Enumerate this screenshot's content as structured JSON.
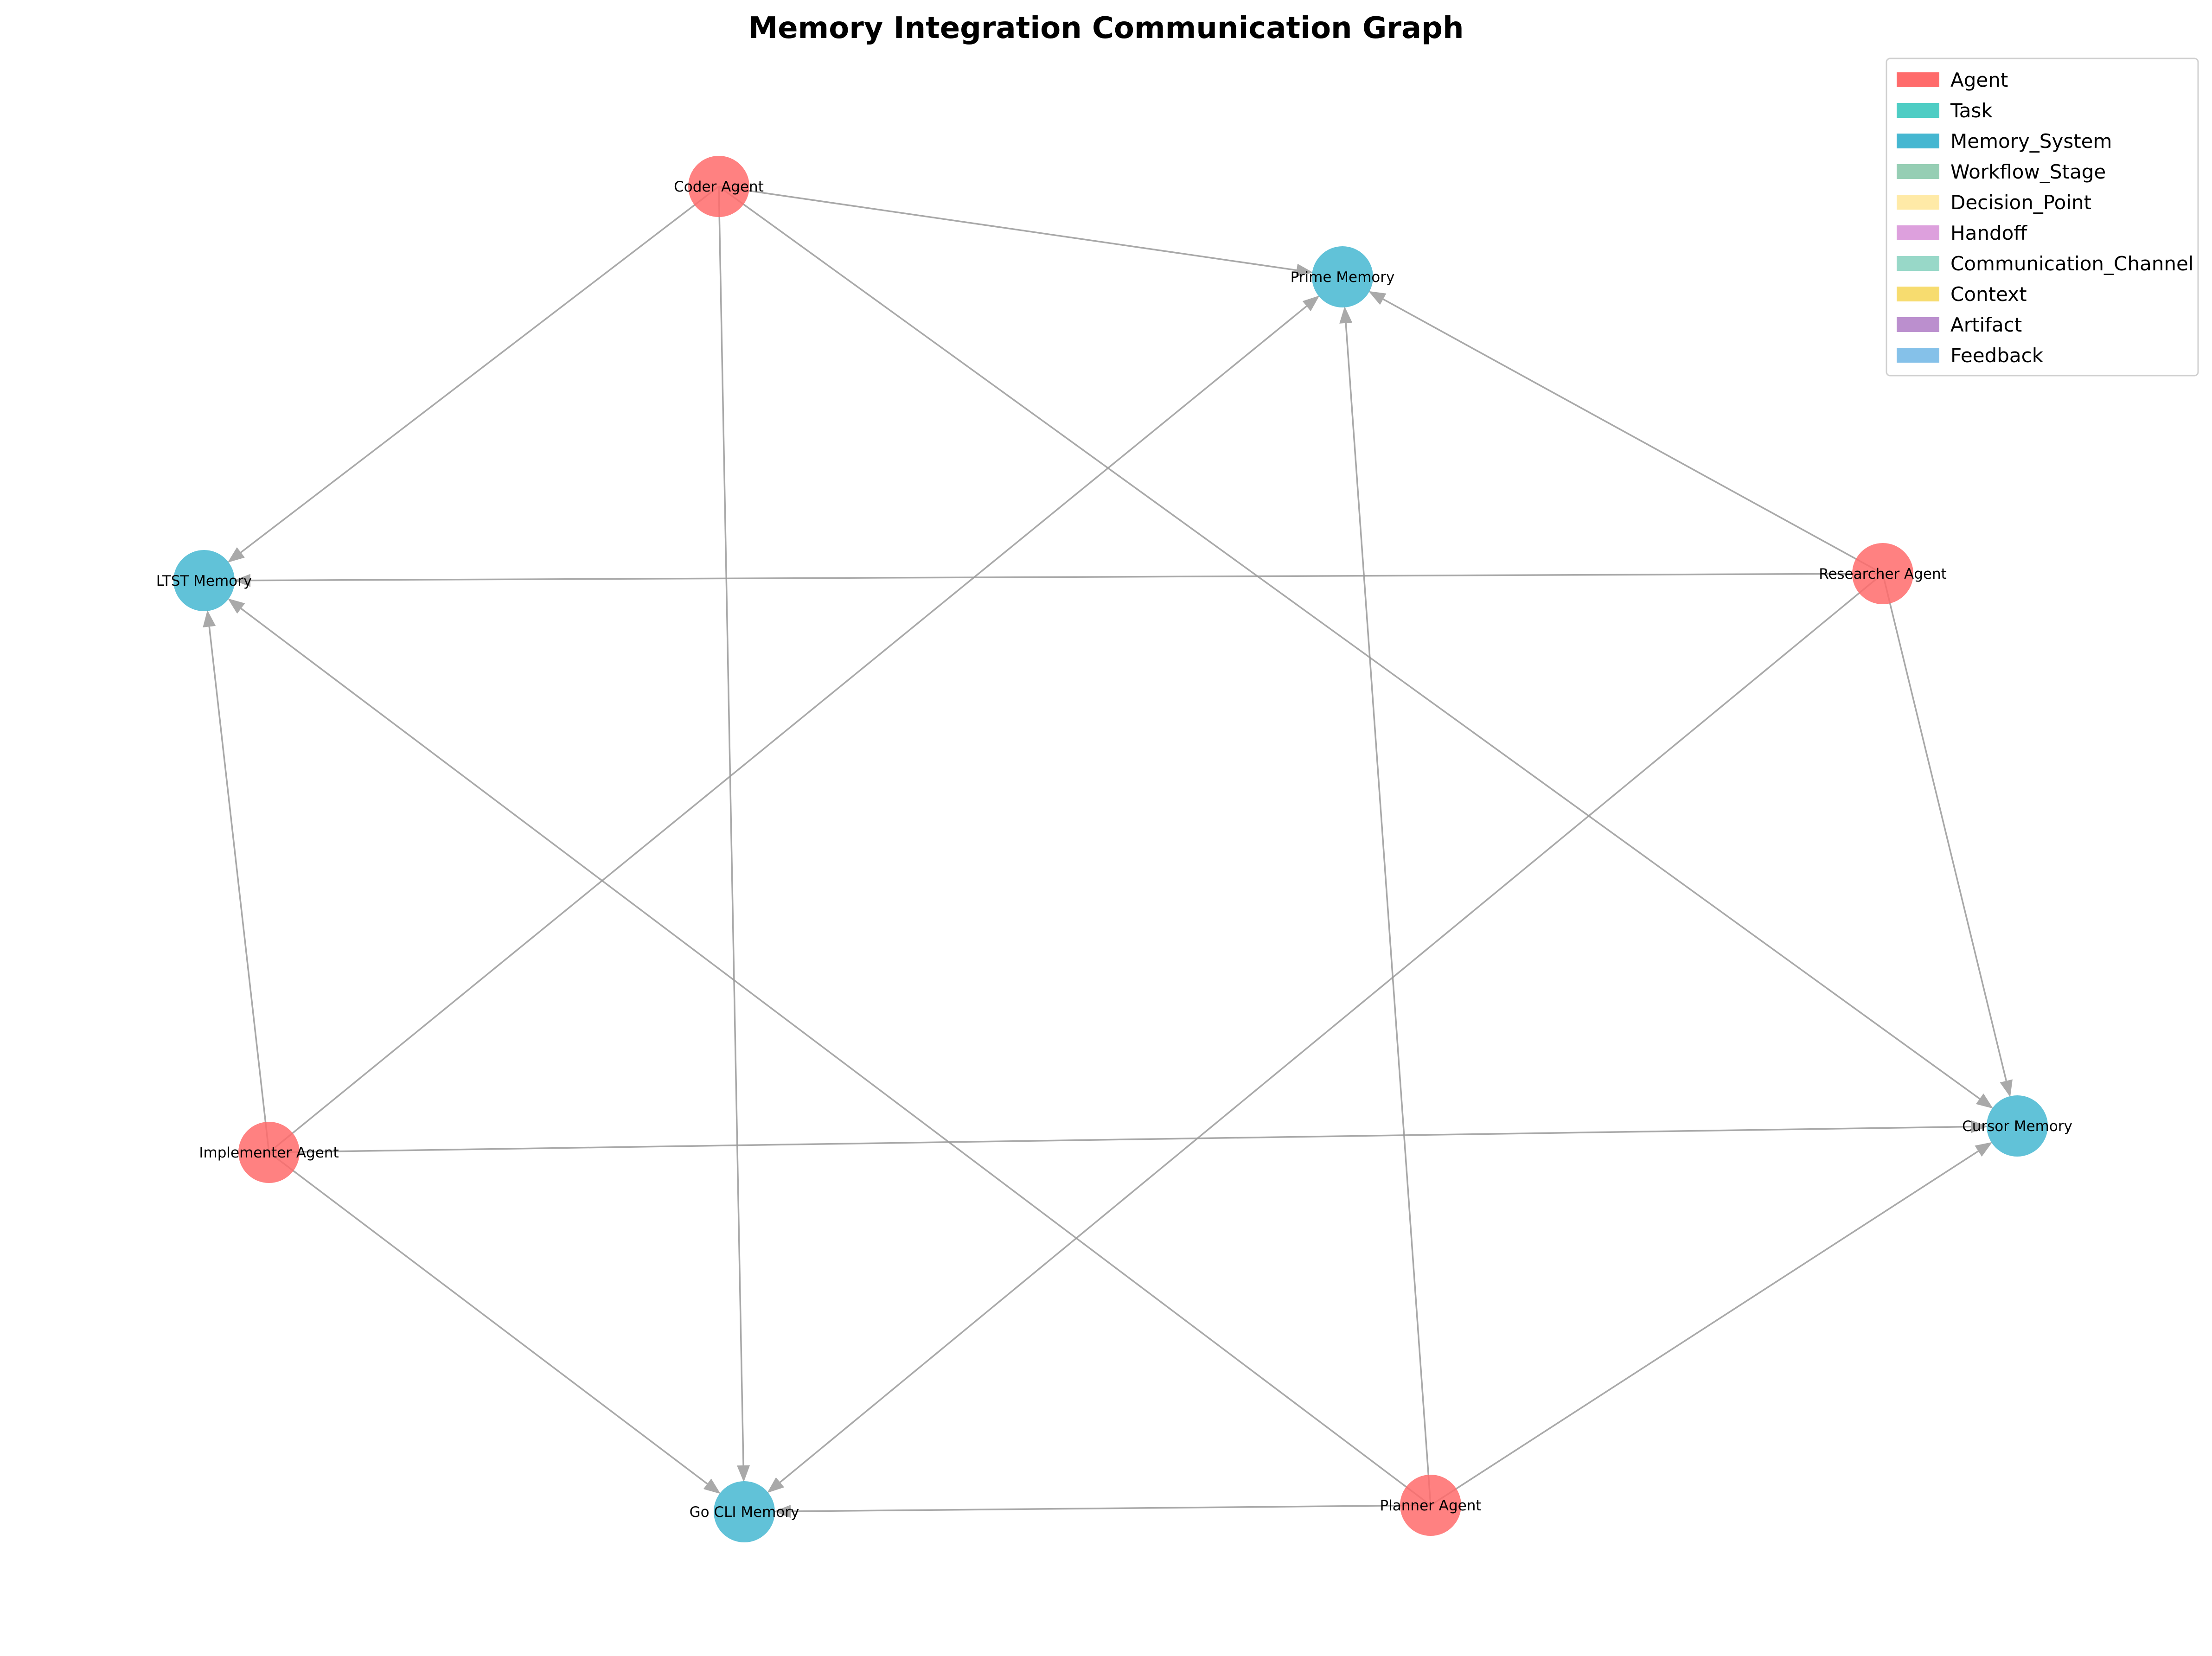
{
  "title": "Memory Integration Communication Graph",
  "colors": {
    "Agent": "#FF6B6B",
    "Task": "#4ECDC4",
    "Memory_System": "#45B7D1",
    "Workflow_Stage": "#96CEB4",
    "Decision_Point": "#FFEAA7",
    "Handoff": "#DDA0DD",
    "Communication_Channel": "#98D8C8",
    "Context": "#F7DC6F",
    "Artifact": "#BB8FCE",
    "Feedback": "#85C1E9"
  },
  "legend": [
    {
      "label": "Agent",
      "color": "#FF6B6B"
    },
    {
      "label": "Task",
      "color": "#4ECDC4"
    },
    {
      "label": "Memory_System",
      "color": "#45B7D1"
    },
    {
      "label": "Workflow_Stage",
      "color": "#96CEB4"
    },
    {
      "label": "Decision_Point",
      "color": "#FFEAA7"
    },
    {
      "label": "Handoff",
      "color": "#DDA0DD"
    },
    {
      "label": "Communication_Channel",
      "color": "#98D8C8"
    },
    {
      "label": "Context",
      "color": "#F7DC6F"
    },
    {
      "label": "Artifact",
      "color": "#BB8FCE"
    },
    {
      "label": "Feedback",
      "color": "#85C1E9"
    }
  ],
  "nodes": [
    {
      "id": "coder",
      "label": "Coder Agent",
      "type": "Agent"
    },
    {
      "id": "prime",
      "label": "Prime Memory",
      "type": "Memory_System"
    },
    {
      "id": "ltst",
      "label": "LTST Memory",
      "type": "Memory_System"
    },
    {
      "id": "researcher",
      "label": "Researcher Agent",
      "type": "Agent"
    },
    {
      "id": "implementer",
      "label": "Implementer Agent",
      "type": "Agent"
    },
    {
      "id": "cursor",
      "label": "Cursor Memory",
      "type": "Memory_System"
    },
    {
      "id": "gocli",
      "label": "Go CLI Memory",
      "type": "Memory_System"
    },
    {
      "id": "planner",
      "label": "Planner Agent",
      "type": "Agent"
    }
  ],
  "edges": [
    {
      "from": "coder",
      "to": "prime"
    },
    {
      "from": "coder",
      "to": "ltst"
    },
    {
      "from": "coder",
      "to": "gocli"
    },
    {
      "from": "coder",
      "to": "cursor"
    },
    {
      "from": "researcher",
      "to": "prime"
    },
    {
      "from": "researcher",
      "to": "ltst"
    },
    {
      "from": "researcher",
      "to": "gocli"
    },
    {
      "from": "researcher",
      "to": "cursor"
    },
    {
      "from": "implementer",
      "to": "prime"
    },
    {
      "from": "implementer",
      "to": "ltst"
    },
    {
      "from": "implementer",
      "to": "gocli"
    },
    {
      "from": "implementer",
      "to": "cursor"
    },
    {
      "from": "planner",
      "to": "prime"
    },
    {
      "from": "planner",
      "to": "ltst"
    },
    {
      "from": "planner",
      "to": "gocli"
    },
    {
      "from": "planner",
      "to": "cursor"
    }
  ]
}
